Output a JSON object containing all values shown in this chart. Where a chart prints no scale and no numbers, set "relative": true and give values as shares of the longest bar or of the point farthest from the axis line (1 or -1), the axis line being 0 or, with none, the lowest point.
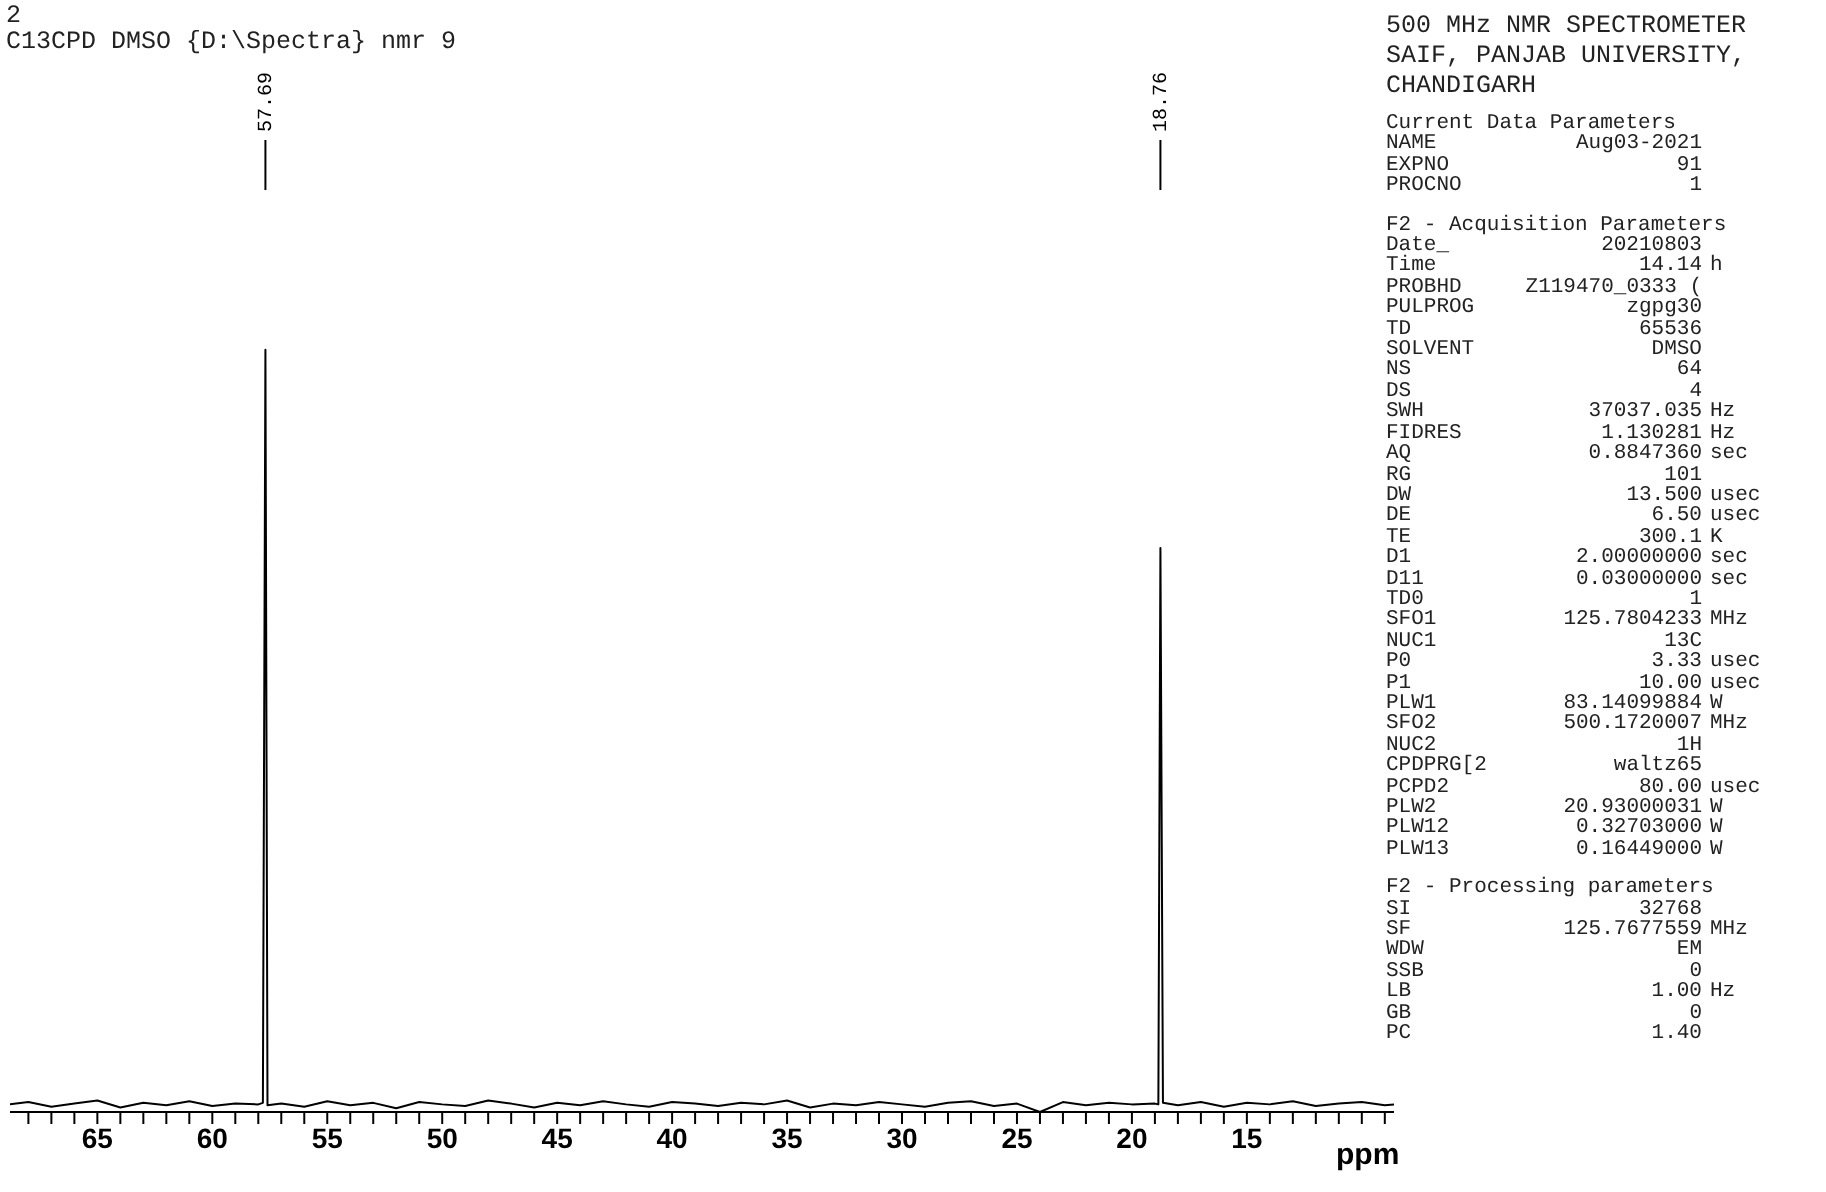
{
  "chart_data": {
    "type": "line",
    "title": "2",
    "subtitle": "C13CPD DMSO {D:\\Spectra} nmr 9",
    "xlabel": "ppm",
    "relative": true,
    "color": "#000000",
    "x": [
      68.8,
      68,
      67,
      66,
      65,
      64,
      63,
      62,
      61,
      60,
      59,
      58,
      57.8,
      57.69,
      57.6,
      57,
      56,
      55,
      54,
      53,
      52,
      51,
      50,
      49,
      48,
      47,
      46,
      45,
      44,
      43,
      42,
      41,
      40,
      39,
      38,
      37,
      36,
      35,
      34,
      33,
      32,
      31,
      30,
      29,
      28,
      27,
      26,
      25,
      24,
      23,
      22,
      21,
      20,
      19,
      18.85,
      18.76,
      18.65,
      18,
      17,
      16,
      15,
      14,
      13,
      12,
      11,
      10,
      9,
      8.6
    ],
    "values": [
      0.01,
      0.013,
      0.007,
      0.011,
      0.015,
      0.006,
      0.012,
      0.009,
      0.014,
      0.008,
      0.011,
      0.01,
      0.012,
      1,
      0.009,
      0.011,
      0.007,
      0.014,
      0.009,
      0.012,
      0.005,
      0.013,
      0.01,
      0.008,
      0.015,
      0.011,
      0.006,
      0.012,
      0.009,
      0.014,
      0.01,
      0.007,
      0.013,
      0.011,
      0.008,
      0.012,
      0.01,
      0.015,
      0.006,
      0.011,
      0.009,
      0.013,
      0.01,
      0.007,
      0.012,
      0.014,
      0.008,
      0.011,
      0,
      0.013,
      0.009,
      0.012,
      0.01,
      0.011,
      0.01,
      0.74,
      0.012,
      0.009,
      0.013,
      0.007,
      0.012,
      0.01,
      0.014,
      0.008,
      0.011,
      0.013,
      0.009,
      0.01
    ],
    "xlim": [
      68.8,
      8.6
    ],
    "xticks": [
      {
        "value": 68,
        "label": null
      },
      {
        "value": 67,
        "label": null
      },
      {
        "value": 66,
        "label": null
      },
      65,
      {
        "value": 64,
        "label": null
      },
      {
        "value": 63,
        "label": null
      },
      {
        "value": 62,
        "label": null
      },
      {
        "value": 61,
        "label": null
      },
      60,
      {
        "value": 59,
        "label": null
      },
      {
        "value": 58,
        "label": null
      },
      {
        "value": 57,
        "label": null
      },
      {
        "value": 56,
        "label": null
      },
      55,
      {
        "value": 54,
        "label": null
      },
      {
        "value": 53,
        "label": null
      },
      {
        "value": 52,
        "label": null
      },
      {
        "value": 51,
        "label": null
      },
      50,
      {
        "value": 49,
        "label": null
      },
      {
        "value": 48,
        "label": null
      },
      {
        "value": 47,
        "label": null
      },
      {
        "value": 46,
        "label": null
      },
      45,
      {
        "value": 44,
        "label": null
      },
      {
        "value": 43,
        "label": null
      },
      {
        "value": 42,
        "label": null
      },
      {
        "value": 41,
        "label": null
      },
      40,
      {
        "value": 39,
        "label": null
      },
      {
        "value": 38,
        "label": null
      },
      {
        "value": 37,
        "label": null
      },
      {
        "value": 36,
        "label": null
      },
      35,
      {
        "value": 34,
        "label": null
      },
      {
        "value": 33,
        "label": null
      },
      {
        "value": 32,
        "label": null
      },
      {
        "value": 31,
        "label": null
      },
      30,
      {
        "value": 29,
        "label": null
      },
      {
        "value": 28,
        "label": null
      },
      {
        "value": 27,
        "label": null
      },
      {
        "value": 26,
        "label": null
      },
      25,
      {
        "value": 24,
        "label": null
      },
      {
        "value": 23,
        "label": null
      },
      {
        "value": 22,
        "label": null
      },
      {
        "value": 21,
        "label": null
      },
      20,
      {
        "value": 19,
        "label": null
      },
      {
        "value": 18,
        "label": null
      },
      {
        "value": 17,
        "label": null
      },
      {
        "value": 16,
        "label": null
      },
      15,
      {
        "value": 14,
        "label": null
      },
      {
        "value": 13,
        "label": null
      },
      {
        "value": 12,
        "label": null
      },
      {
        "value": 11,
        "label": null
      },
      {
        "value": 10,
        "label": null
      },
      {
        "value": 9,
        "label": null
      }
    ],
    "annotations": [
      {
        "text": "57.69",
        "x": 57.69
      },
      {
        "text": "18.76",
        "x": 18.76
      },
      "500 MHz NMR SPECTROMETER",
      "SAIF, PANJAB UNIVERSITY,",
      "CHANDIGARH",
      "Current Data Parameters",
      "NAME\tAug03-2021",
      "EXPNO\t91",
      "PROCNO\t1",
      "F2 - Acquisition Parameters",
      "Date_\t20210803",
      "Time\t14.14\th",
      "PROBHD\tZ119470_0333 (",
      "PULPROG\tzgpg30",
      "TD\t65536",
      "SOLVENT\tDMSO",
      "NS\t64",
      "DS\t4",
      "SWH\t37037.035\tHz",
      "FIDRES\t1.130281\tHz",
      "AQ\t0.8847360\tsec",
      "RG\t101",
      "DW\t13.500\tusec",
      "DE\t6.50\tusec",
      "TE\t300.1\tK",
      "D1\t2.00000000\tsec",
      "D11\t0.03000000\tsec",
      "TD0\t1",
      "SFO1\t125.7804233\tMHz",
      "NUC1\t13C",
      "P0\t3.33\tusec",
      "P1\t10.00\tusec",
      "PLW1\t83.14099884\tW",
      "SFO2\t500.1720007\tMHz",
      "NUC2\t1H",
      "CPDPRG[2\twaltz65",
      "PCPD2\t80.00\tusec",
      "PLW2\t20.93000031\tW",
      "PLW12\t0.32703000\tW",
      "PLW13\t0.16449000\tW",
      "F2 - Processing parameters",
      "SI\t32768",
      "SF\t125.7677559\tMHz",
      "WDW\tEM",
      "SSB\t0",
      "LB\t1.00\tHz",
      "GB\t0",
      "PC\t1.40"
    ]
  }
}
